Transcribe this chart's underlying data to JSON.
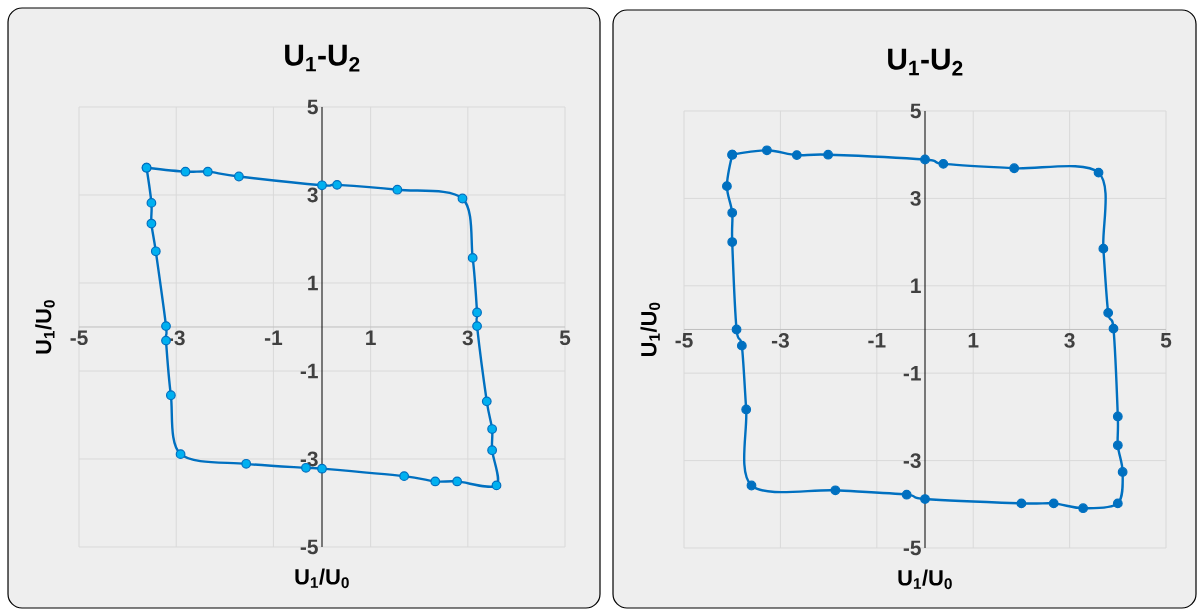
{
  "chart_data": [
    {
      "type": "scatter",
      "line_style": "solid",
      "title": "U$_{1}$-U$_{2}$",
      "xlabel": "U$_{1}$/U$_{0}$",
      "ylabel": "U$_{1}$/U$_{0}$",
      "xlim": [
        -5,
        5
      ],
      "ylim": [
        -5,
        5
      ],
      "xticks": [
        -5,
        -3,
        -1,
        1,
        3,
        5
      ],
      "yticks": [
        -5,
        -3,
        -1,
        1,
        3,
        5
      ],
      "grid": true,
      "marker": "circle",
      "series": [
        {
          "color": "#0070c0",
          "colors": [
            "#00b0f0",
            "#00b0f0",
            "#00b0f0",
            "#00b0f0",
            "#00b0f0",
            "#00b0f0",
            "#00b0f0",
            "#00b0f0",
            "#00b0f0",
            "#00b0f0",
            "#00b0f0",
            "#00b0f0",
            "#00b0f0",
            "#00b0f0",
            "#00b0f0",
            "#00b0f0",
            "#00b0f0",
            "#00b0f0",
            "#00b0f0",
            "#00b0f0",
            "#00b0f0",
            "#00b0f0",
            "#00b0f0",
            "#00b0f0",
            "#00b0f0",
            "#00b0f0",
            "#00b0f0",
            "#00b0f0",
            "#00b0f0"
          ],
          "x": [
            -3.61,
            -2.81,
            -2.35,
            -1.71,
            0,
            0.31,
            1.55,
            2.89,
            3.1,
            3.19,
            3.19,
            3.39,
            3.5,
            3.5,
            3.59,
            2.78,
            2.33,
            1.69,
            0,
            -0.33,
            -1.56,
            -2.91,
            -3.11,
            -3.21,
            -3.21,
            -3.42,
            -3.51,
            -3.51,
            -3.61
          ],
          "values": [
            3.62,
            3.53,
            3.53,
            3.42,
            3.22,
            3.23,
            3.12,
            2.92,
            1.57,
            0.33,
            0.02,
            -1.69,
            -2.32,
            -2.8,
            -3.6,
            -3.51,
            -3.51,
            -3.39,
            -3.22,
            -3.2,
            -3.11,
            -2.89,
            -1.55,
            -0.31,
            0.02,
            1.72,
            2.35,
            2.82,
            3.62
          ]
        }
      ]
    },
    {
      "type": "scatter",
      "line_style": "solid",
      "title": "U$_{1}$-U$_{2}$",
      "xlabel": "U$_{1}$/U$_{0}$",
      "ylabel": "U$_{1}$/U$_{0}$",
      "xlim": [
        -5,
        5
      ],
      "ylim": [
        -5,
        5
      ],
      "xticks": [
        -5,
        -3,
        -1,
        1,
        3,
        5
      ],
      "yticks": [
        -5,
        -3,
        -1,
        1,
        3,
        5
      ],
      "grid": true,
      "marker": "circle",
      "series": [
        {
          "color": "#0070c0",
          "x": [
            -4.0,
            -3.28,
            -2.66,
            -2.01,
            0,
            0.38,
            1.85,
            3.6,
            3.7,
            3.8,
            3.91,
            4.0,
            4.0,
            4.1,
            4.0,
            3.28,
            2.67,
            2.0,
            0,
            -0.38,
            -1.86,
            -3.6,
            -3.71,
            -3.8,
            -3.91,
            -4.0,
            -4.0,
            -4.11,
            -4.0
          ],
          "values": [
            4.0,
            4.1,
            3.99,
            4.0,
            3.89,
            3.79,
            3.69,
            3.59,
            1.85,
            0.38,
            0.02,
            -1.99,
            -2.65,
            -3.26,
            -3.98,
            -4.09,
            -3.98,
            -3.98,
            -3.88,
            -3.78,
            -3.68,
            -3.57,
            -1.83,
            -0.37,
            0.0,
            2.0,
            2.67,
            3.28,
            4.0
          ]
        }
      ]
    }
  ]
}
